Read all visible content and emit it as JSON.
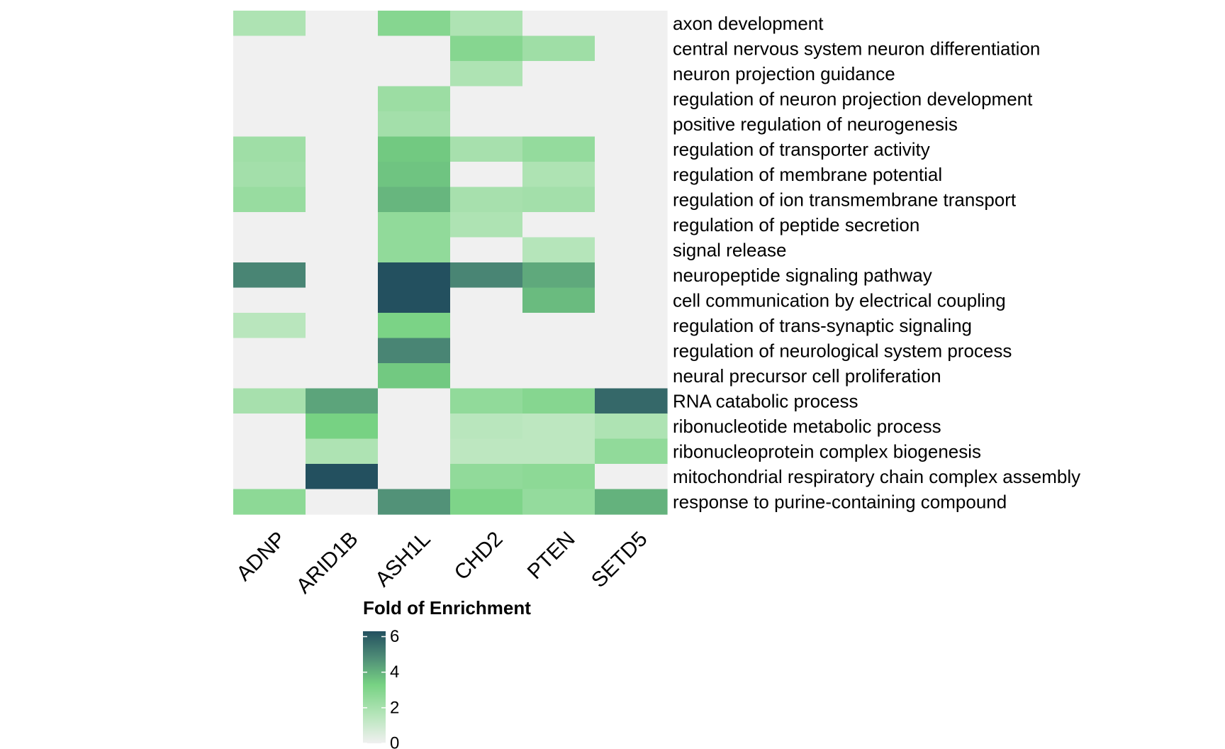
{
  "chart_data": {
    "type": "heatmap",
    "title": "",
    "xlabel": "",
    "ylabel": "",
    "columns": [
      "ADNP",
      "ARID1B",
      "ASH1L",
      "CHD2",
      "PTEN",
      "SETD5"
    ],
    "rows": [
      "axon development",
      "central nervous system neuron differentiation",
      "neuron projection guidance",
      "regulation of neuron projection development",
      "positive regulation of neurogenesis",
      "regulation of transporter activity",
      "regulation of membrane potential",
      "regulation of ion transmembrane transport",
      "regulation of peptide secretion",
      "signal release",
      "neuropeptide signaling pathway",
      "cell communication by electrical coupling",
      "regulation of trans-synaptic signaling",
      "regulation of neurological system process",
      "neural precursor cell proliferation",
      "RNA catabolic process",
      "ribonucleotide metabolic process",
      "ribonucleoprotein complex biogenesis",
      "mitochondrial respiratory chain complex assembly",
      "response to purine-containing compound"
    ],
    "values": [
      [
        1.8,
        0,
        2.9,
        1.8,
        0,
        0
      ],
      [
        0,
        0,
        0,
        2.9,
        2.2,
        0
      ],
      [
        0,
        0,
        0,
        1.8,
        0,
        0
      ],
      [
        0,
        0,
        2.3,
        0,
        0,
        0
      ],
      [
        0,
        0,
        2.1,
        0,
        0,
        0
      ],
      [
        2.2,
        0,
        3.5,
        2.0,
        2.5,
        0
      ],
      [
        2.1,
        0,
        3.6,
        0,
        1.8,
        0
      ],
      [
        2.4,
        0,
        3.9,
        2.0,
        2.1,
        0
      ],
      [
        0,
        0,
        2.6,
        1.8,
        0,
        0
      ],
      [
        0,
        0,
        2.6,
        0,
        1.6,
        0
      ],
      [
        5.0,
        0,
        6.3,
        5.0,
        4.2,
        0
      ],
      [
        0,
        0,
        6.3,
        0,
        3.8,
        0
      ],
      [
        1.5,
        0,
        3.2,
        0,
        0,
        0
      ],
      [
        0,
        0,
        5.0,
        0,
        0,
        0
      ],
      [
        0,
        0,
        3.5,
        0,
        0,
        0
      ],
      [
        2.0,
        4.3,
        0,
        2.6,
        2.9,
        5.7
      ],
      [
        0,
        3.3,
        0,
        1.5,
        1.4,
        1.8
      ],
      [
        0,
        1.8,
        0,
        1.4,
        1.4,
        2.6
      ],
      [
        0,
        6.3,
        0,
        2.6,
        2.7,
        0
      ],
      [
        2.7,
        0,
        4.7,
        3.1,
        2.5,
        4.0
      ]
    ],
    "value_range": [
      0,
      6.3
    ],
    "legend": {
      "title": "Fold of Enrichment",
      "ticks": [
        "0",
        "2",
        "4",
        "6"
      ],
      "tick_values": [
        0,
        2,
        4,
        6
      ],
      "placement": "bottom"
    },
    "color_scale": {
      "stops": [
        {
          "value": 0,
          "color": "#f0f0f0"
        },
        {
          "value": 1.5,
          "color": "#b9e6bd"
        },
        {
          "value": 3.3,
          "color": "#77d283"
        },
        {
          "value": 4.8,
          "color": "#4f8d77"
        },
        {
          "value": 6.3,
          "color": "#23505f"
        }
      ]
    }
  }
}
